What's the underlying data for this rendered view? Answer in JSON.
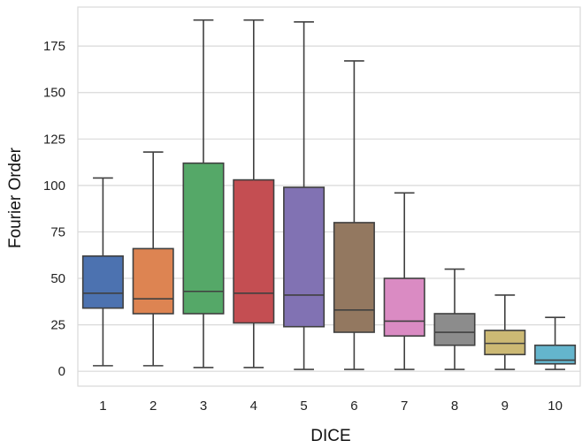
{
  "chart_data": {
    "type": "box",
    "xlabel": "DICE",
    "ylabel": "Fourier Order",
    "ylim": [
      -8,
      196
    ],
    "yticks": [
      0,
      25,
      50,
      75,
      100,
      125,
      150,
      175
    ],
    "grid": "horizontal",
    "categories": [
      "1",
      "2",
      "3",
      "4",
      "5",
      "6",
      "7",
      "8",
      "9",
      "10"
    ],
    "boxes": [
      {
        "category": "1",
        "whisker_low": 3,
        "q1": 34,
        "median": 42,
        "q3": 62,
        "whisker_high": 104,
        "color": "#4c72b0"
      },
      {
        "category": "2",
        "whisker_low": 3,
        "q1": 31,
        "median": 39,
        "q3": 66,
        "whisker_high": 118,
        "color": "#dd8452"
      },
      {
        "category": "3",
        "whisker_low": 2,
        "q1": 31,
        "median": 43,
        "q3": 112,
        "whisker_high": 189,
        "color": "#55a868"
      },
      {
        "category": "4",
        "whisker_low": 2,
        "q1": 26,
        "median": 42,
        "q3": 103,
        "whisker_high": 189,
        "color": "#c44e52"
      },
      {
        "category": "5",
        "whisker_low": 1,
        "q1": 24,
        "median": 41,
        "q3": 99,
        "whisker_high": 188,
        "color": "#8172b3"
      },
      {
        "category": "6",
        "whisker_low": 1,
        "q1": 21,
        "median": 33,
        "q3": 80,
        "whisker_high": 167,
        "color": "#937860"
      },
      {
        "category": "7",
        "whisker_low": 1,
        "q1": 19,
        "median": 27,
        "q3": 50,
        "whisker_high": 96,
        "color": "#da8bc3"
      },
      {
        "category": "8",
        "whisker_low": 1,
        "q1": 14,
        "median": 21,
        "q3": 31,
        "whisker_high": 55,
        "color": "#8c8c8c"
      },
      {
        "category": "9",
        "whisker_low": 1,
        "q1": 9,
        "median": 15,
        "q3": 22,
        "whisker_high": 41,
        "color": "#ccb974"
      },
      {
        "category": "10",
        "whisker_low": 1,
        "q1": 4,
        "median": 6,
        "q3": 14,
        "whisker_high": 29,
        "color": "#64b5cd"
      }
    ]
  }
}
